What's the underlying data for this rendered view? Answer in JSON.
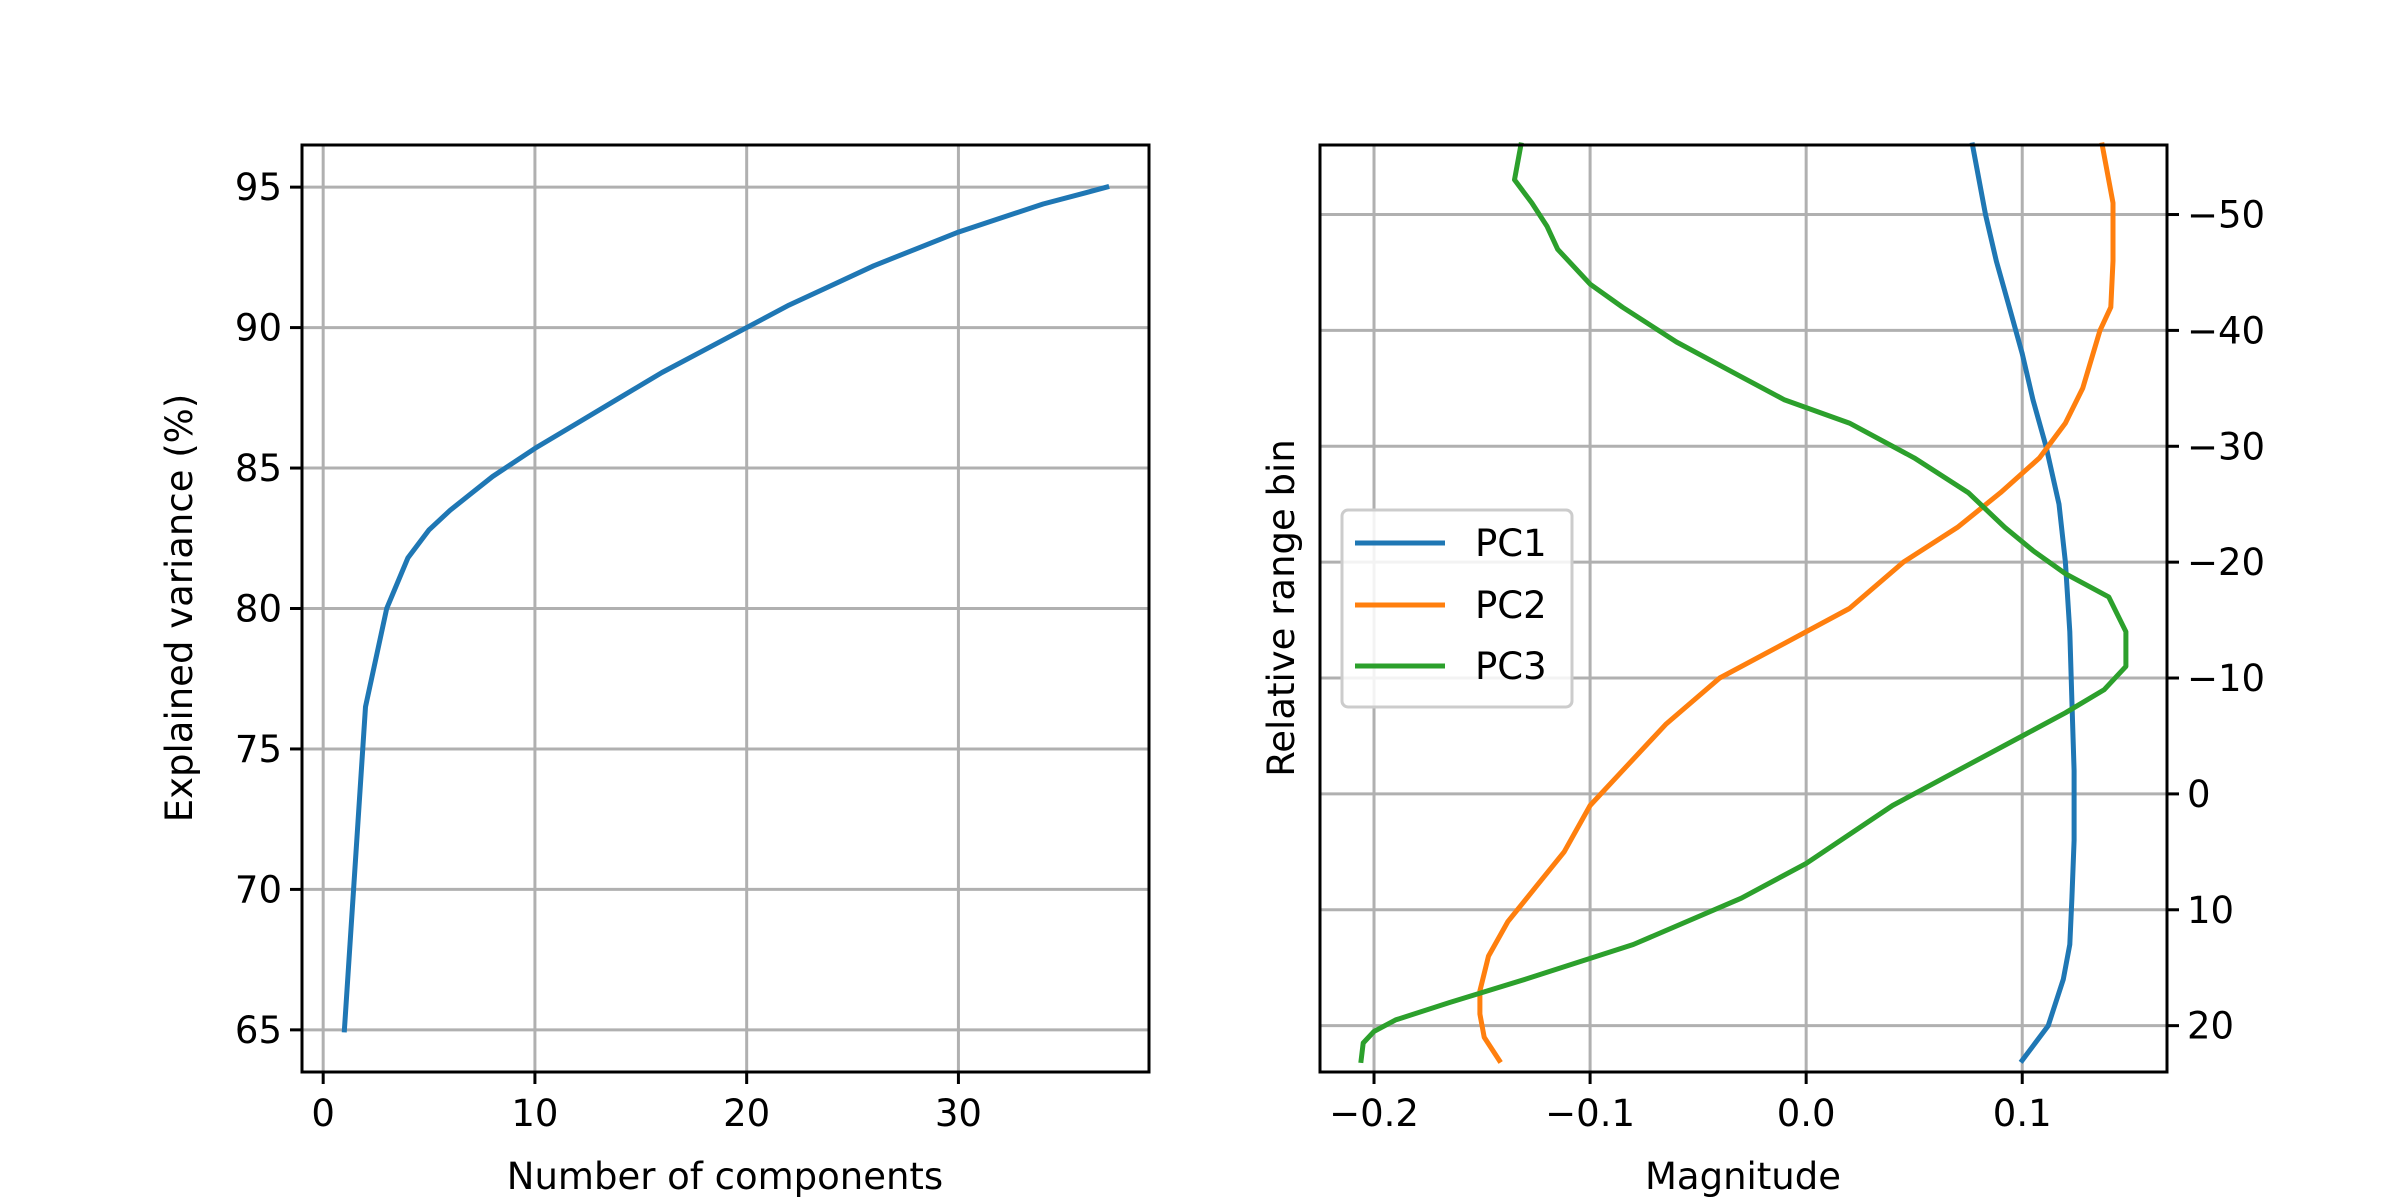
{
  "chart_data": [
    {
      "type": "line",
      "xlabel": "Number of components",
      "ylabel": "Explained variance (%)",
      "xlim": [
        -1,
        39
      ],
      "ylim": [
        63.5,
        96.5
      ],
      "xticks": [
        0,
        10,
        20,
        30
      ],
      "yticks": [
        65,
        70,
        75,
        80,
        85,
        90,
        95
      ],
      "grid": true,
      "series": [
        {
          "color": "#1f77b4",
          "x": [
            1,
            2,
            3,
            4,
            5,
            6,
            7,
            8,
            9,
            10,
            12,
            14,
            16,
            18,
            20,
            22,
            24,
            26,
            28,
            30,
            32,
            34,
            36,
            37
          ],
          "y": [
            65.0,
            76.5,
            80.0,
            81.8,
            82.8,
            83.5,
            84.1,
            84.7,
            85.2,
            85.7,
            86.6,
            87.5,
            88.4,
            89.2,
            90.0,
            90.8,
            91.5,
            92.2,
            92.8,
            93.4,
            93.9,
            94.4,
            94.8,
            95.0
          ]
        }
      ]
    },
    {
      "type": "line",
      "xlabel": "Magnitude",
      "ylabel": "Relative range bin",
      "xlim": [
        -0.225,
        0.167
      ],
      "ylim": [
        24,
        -56
      ],
      "y_inverted": true,
      "y_ticks_side": "right",
      "xticks": [
        -0.2,
        -0.1,
        0.0,
        0.1
      ],
      "xtick_labels": [
        "−0.2",
        "−0.1",
        "0.0",
        "0.1"
      ],
      "yticks": [
        -50,
        -40,
        -30,
        -20,
        -10,
        0,
        10,
        20
      ],
      "ytick_labels": [
        "−50",
        "−40",
        "−30",
        "−20",
        "−10",
        "0",
        "10",
        "20"
      ],
      "grid": true,
      "legend": {
        "placement": "center-left"
      },
      "series": [
        {
          "name": "PC1",
          "color": "#1f77b4",
          "x": [
            0.077,
            0.083,
            0.088,
            0.094,
            0.1,
            0.105,
            0.111,
            0.117,
            0.12,
            0.122,
            0.123,
            0.124,
            0.124,
            0.123,
            0.122,
            0.119,
            0.112,
            0.1
          ],
          "y": [
            -56,
            -50,
            -46,
            -42,
            -38,
            -34,
            -30,
            -25,
            -20,
            -14,
            -8,
            -2,
            4,
            9,
            13,
            16,
            20,
            23
          ]
        },
        {
          "name": "PC2",
          "color": "#ff7f0e",
          "x": [
            0.137,
            0.142,
            0.142,
            0.141,
            0.136,
            0.128,
            0.12,
            0.108,
            0.09,
            0.07,
            0.045,
            0.02,
            -0.01,
            -0.04,
            -0.065,
            -0.085,
            -0.1,
            -0.112,
            -0.125,
            -0.138,
            -0.147,
            -0.151,
            -0.151,
            -0.149,
            -0.142
          ],
          "y": [
            -56,
            -51,
            -46,
            -42,
            -40,
            -35,
            -32,
            -29,
            -26,
            -23,
            -20,
            -16,
            -13,
            -10,
            -6,
            -2,
            1,
            5,
            8,
            11,
            14,
            17,
            19,
            21,
            23
          ]
        },
        {
          "name": "PC3",
          "color": "#2ca02c",
          "x": [
            -0.132,
            -0.135,
            -0.127,
            -0.12,
            -0.115,
            -0.1,
            -0.085,
            -0.06,
            -0.03,
            -0.01,
            0.02,
            0.05,
            0.075,
            0.092,
            0.105,
            0.12,
            0.14,
            0.148,
            0.148,
            0.138,
            0.12,
            0.1,
            0.07,
            0.04,
            0.0,
            -0.03,
            -0.08,
            -0.13,
            -0.165,
            -0.19,
            -0.2,
            -0.205,
            -0.206
          ],
          "y": [
            -56,
            -53,
            -51,
            -49,
            -47,
            -44,
            -42,
            -39,
            -36,
            -34,
            -32,
            -29,
            -26,
            -23,
            -21,
            -19,
            -17,
            -14,
            -11,
            -9,
            -7,
            -5,
            -2,
            1,
            6,
            9,
            13,
            16,
            18,
            19.5,
            20.5,
            21.5,
            23
          ]
        }
      ]
    }
  ]
}
